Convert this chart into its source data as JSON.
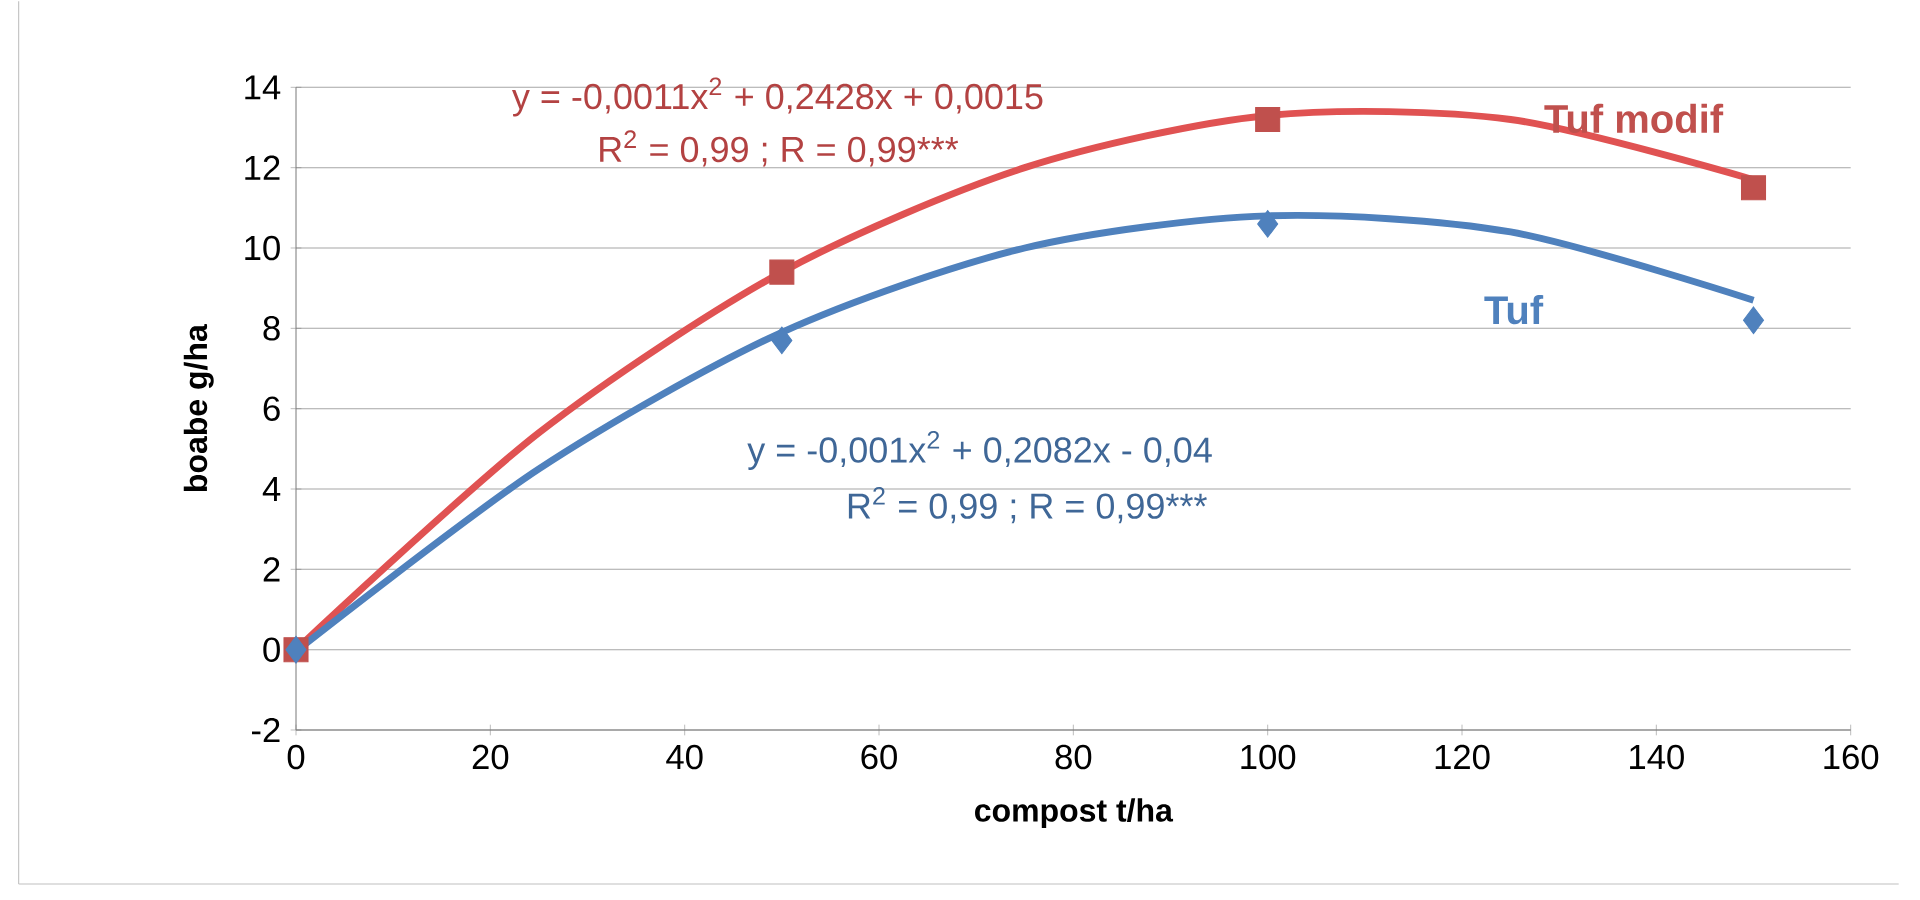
{
  "chart_data": {
    "type": "scatter",
    "xlabel": "compost t/ha",
    "ylabel": "boabe g/ha",
    "xlim": [
      0,
      160
    ],
    "xticks": [
      0,
      20,
      40,
      60,
      80,
      100,
      120,
      140,
      160
    ],
    "ylim": [
      -2,
      14
    ],
    "yticks": [
      -2,
      0,
      2,
      4,
      6,
      8,
      10,
      12,
      14
    ],
    "grid": "y",
    "series": [
      {
        "type": "line",
        "color": "#e05252",
        "x": [
          0,
          25,
          50,
          75,
          100,
          125,
          150
        ],
        "values": [
          0,
          5.4,
          9.4,
          12.0,
          13.3,
          13.2,
          11.7
        ]
      },
      {
        "type": "line",
        "color": "#4f81bd",
        "x": [
          0,
          25,
          50,
          75,
          100,
          125,
          150
        ],
        "values": [
          -0.04,
          4.5,
          7.9,
          10.0,
          10.8,
          10.4,
          8.7
        ]
      },
      {
        "name": "Tuf modif",
        "color": "#c0504d",
        "marker": "square",
        "x": [
          0,
          50,
          100,
          150
        ],
        "values": [
          0,
          9.4,
          13.2,
          11.5
        ]
      },
      {
        "name": "Tuf",
        "color": "#4f81bd",
        "marker": "diamond",
        "x": [
          0,
          50,
          100,
          150
        ],
        "values": [
          0,
          7.7,
          10.6,
          8.2
        ]
      }
    ],
    "annotations": [
      "y = -0,0011x$^{2}$ + 0,2428x + 0,0015",
      "R$^{2}$ = 0,99 ; R = 0,99***",
      "y = -0,001x$^{2}$ + 0,2082x - 0,04",
      "R$^{2}$ = 0,99 ; R = 0,99***"
    ]
  }
}
